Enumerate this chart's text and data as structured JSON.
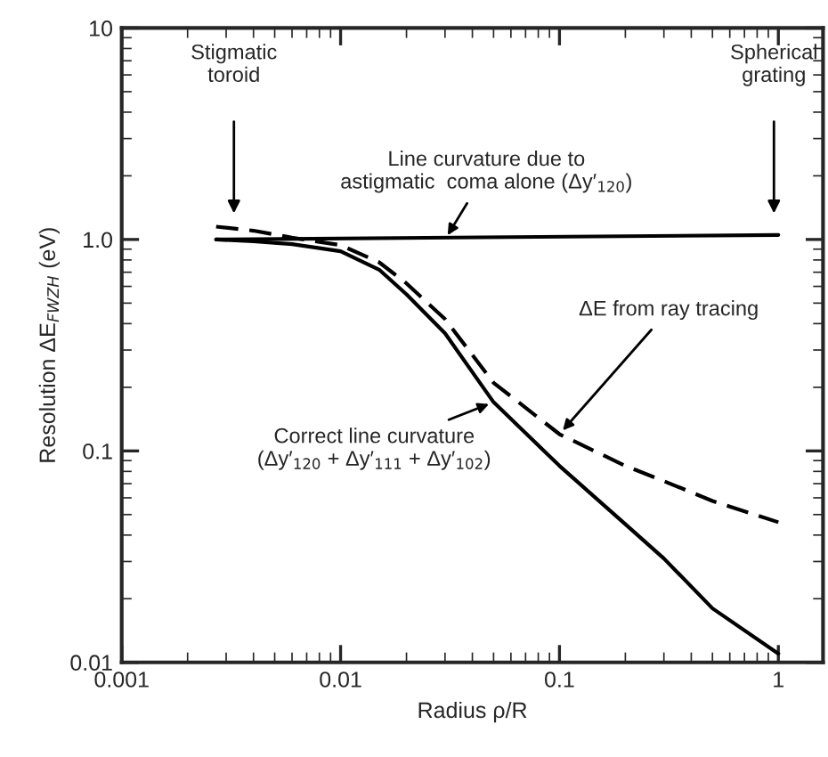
{
  "chart_data": {
    "type": "line",
    "xlabel": "Radius ρ/R",
    "ylabel": "Resolution ΔE$_{FWZH}$ (eV)",
    "log": "xy",
    "xlim": [
      0.001,
      1.6
    ],
    "ylim": [
      0.01,
      10
    ],
    "xticks": [
      0.001,
      0.01,
      0.1,
      1
    ],
    "yticks": [
      0.01,
      0.1,
      {
        "value": 1,
        "label": "1.0"
      },
      10
    ],
    "grid": false,
    "legend": false,
    "series": [
      {
        "color": "#000000",
        "line_style": "solid",
        "x": [
          0.0027,
          1
        ],
        "values": [
          1.0,
          1.05
        ]
      },
      {
        "color": "#000000",
        "line_style": "solid",
        "x": [
          0.0027,
          0.004,
          0.006,
          0.01,
          0.015,
          0.02,
          0.03,
          0.05,
          0.1,
          0.2,
          0.3,
          0.5,
          1
        ],
        "values": [
          1.0,
          0.98,
          0.95,
          0.88,
          0.72,
          0.55,
          0.36,
          0.17,
          0.085,
          0.045,
          0.031,
          0.018,
          0.011
        ]
      },
      {
        "color": "#000000",
        "line_style": "dashed",
        "x": [
          0.0027,
          0.004,
          0.006,
          0.01,
          0.015,
          0.02,
          0.03,
          0.05,
          0.1,
          0.2,
          0.3,
          0.5,
          1
        ],
        "values": [
          1.15,
          1.1,
          1.02,
          0.94,
          0.78,
          0.62,
          0.42,
          0.21,
          0.12,
          0.085,
          0.072,
          0.058,
          0.046
        ]
      }
    ],
    "annotations": [
      "Stigmatic\ntoroid",
      "Spherical\ngrating",
      {
        "text": "Line curvature due to\nastigmatic  coma alone (Δy′$_{120}$)",
        "x": 0.03,
        "y": 1.0
      },
      {
        "text": "ΔE from ray tracing",
        "x": 0.1,
        "y": 0.12
      },
      {
        "text": "Correct line curvature\n(Δy′$_{120}$ + Δy′$_{111}$ + Δy′$_{102}$)",
        "x": 0.05,
        "y": 0.17
      }
    ]
  }
}
